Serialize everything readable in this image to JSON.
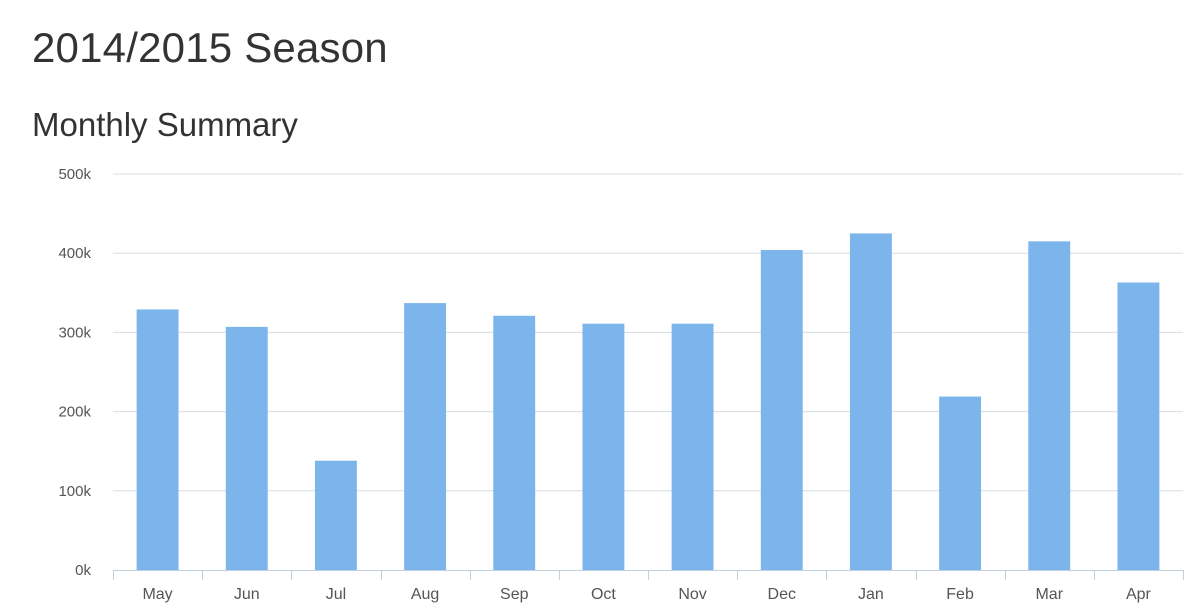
{
  "header": {
    "title": "2014/2015 Season"
  },
  "chart_data": {
    "type": "bar",
    "title": "Monthly Summary",
    "xlabel": "",
    "ylabel": "",
    "categories": [
      "May",
      "Jun",
      "Jul",
      "Aug",
      "Sep",
      "Oct",
      "Nov",
      "Dec",
      "Jan",
      "Feb",
      "Mar",
      "Apr"
    ],
    "values": [
      329000,
      307000,
      138000,
      337000,
      321000,
      311000,
      311000,
      404000,
      425000,
      219000,
      415000,
      363000
    ],
    "ylim": [
      0,
      500000
    ],
    "yticks": [
      0,
      100000,
      200000,
      300000,
      400000,
      500000
    ],
    "ytick_labels": [
      "0k",
      "100k",
      "200k",
      "300k",
      "400k",
      "500k"
    ],
    "grid": true,
    "legend": "none",
    "bar_color": "#7cb5ec",
    "grid_color": "#d8dce6",
    "axis_color": "#c0d0e0"
  }
}
